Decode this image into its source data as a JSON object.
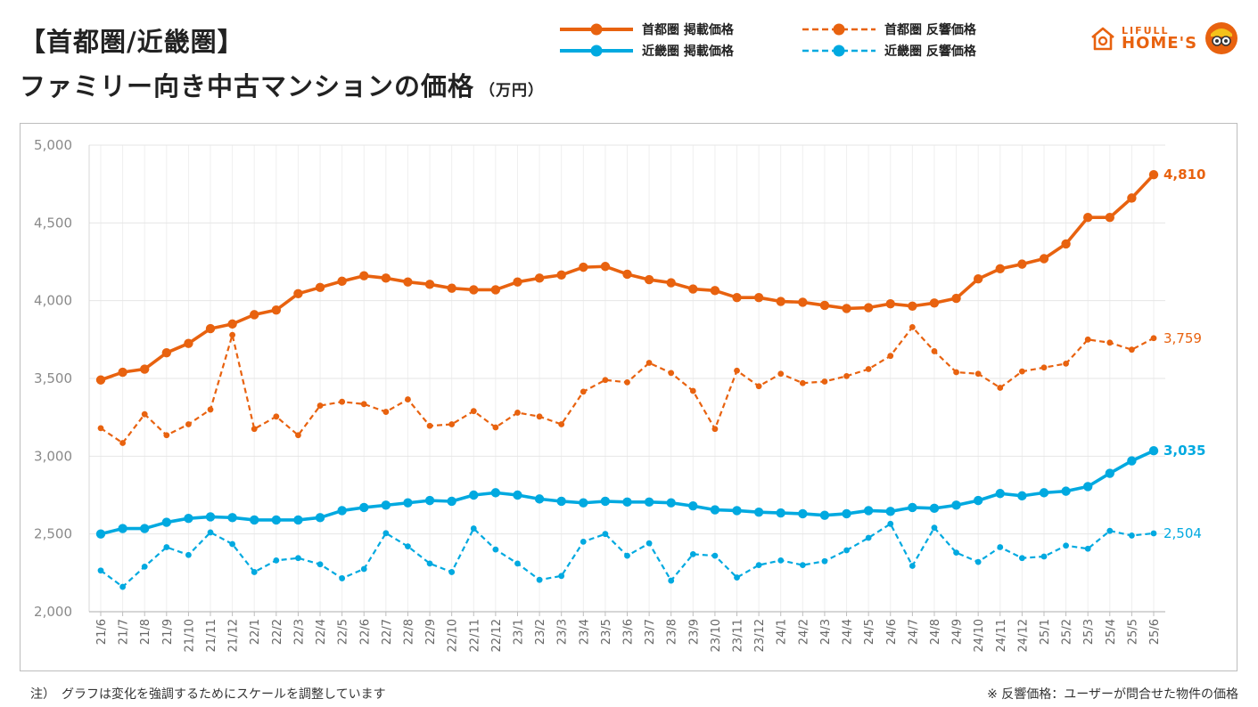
{
  "header": {
    "title_line1": "【首都圏/近畿圏】",
    "title_line2": "ファミリー向き中古マンションの価格",
    "unit": "（万円）"
  },
  "logo": {
    "line1": "LIFULL",
    "line2": "HOME'S",
    "icon": "house-logo-icon",
    "mascot": "mascot-icon"
  },
  "legend": [
    {
      "label": "首都圏 掲載価格",
      "color": "#e8620f",
      "style": "solid"
    },
    {
      "label": "首都圏 反響価格",
      "color": "#e8620f",
      "style": "dashed"
    },
    {
      "label": "近畿圏 掲載価格",
      "color": "#00a9e0",
      "style": "solid"
    },
    {
      "label": "近畿圏 反響価格",
      "color": "#00a9e0",
      "style": "dashed"
    }
  ],
  "colors": {
    "orange": "#e8620f",
    "blue": "#00a9e0",
    "grid": "#e6e6e6",
    "axis_text": "#8a8a8a"
  },
  "footnotes": {
    "left": "注）　グラフは変化を強調するためにスケールを調整しています",
    "right": "※ 反響価格：ユーザーが問合せた物件の価格"
  },
  "chart_data": {
    "type": "line",
    "ylim": [
      2000,
      5000
    ],
    "yticks": [
      "2,000",
      "2,500",
      "3,000",
      "3,500",
      "4,000",
      "4,500",
      "5,000"
    ],
    "grid": true,
    "categories": [
      "21/6",
      "21/7",
      "21/8",
      "21/9",
      "21/10",
      "21/11",
      "21/12",
      "22/1",
      "22/2",
      "22/3",
      "22/4",
      "22/5",
      "22/6",
      "22/7",
      "22/8",
      "22/9",
      "22/10",
      "22/11",
      "22/12",
      "23/1",
      "23/2",
      "23/3",
      "23/4",
      "23/5",
      "23/6",
      "23/7",
      "23/8",
      "23/9",
      "23/10",
      "23/11",
      "23/12",
      "24/1",
      "24/2",
      "24/3",
      "24/4",
      "24/5",
      "24/6",
      "24/7",
      "24/8",
      "24/9",
      "24/10",
      "24/11",
      "24/12",
      "25/1",
      "25/2",
      "25/3",
      "25/4",
      "25/5",
      "25/6"
    ],
    "series": [
      {
        "name": "首都圏 掲載価格",
        "color": "#e8620f",
        "style": "solid",
        "end_label": "4,810",
        "values": [
          3490,
          3540,
          3560,
          3665,
          3725,
          3820,
          3850,
          3910,
          3940,
          4045,
          4085,
          4125,
          4160,
          4145,
          4120,
          4105,
          4080,
          4070,
          4070,
          4120,
          4145,
          4165,
          4215,
          4220,
          4170,
          4135,
          4115,
          4075,
          4065,
          4020,
          4020,
          3995,
          3990,
          3970,
          3950,
          3955,
          3980,
          3965,
          3985,
          4015,
          4140,
          4205,
          4235,
          4270,
          4365,
          4535,
          4535,
          4660,
          4810
        ]
      },
      {
        "name": "首都圏 反響価格",
        "color": "#e8620f",
        "style": "dashed",
        "end_label": "3,759",
        "values": [
          3180,
          3085,
          3270,
          3135,
          3205,
          3300,
          3780,
          3175,
          3255,
          3135,
          3325,
          3350,
          3335,
          3285,
          3365,
          3195,
          3205,
          3290,
          3185,
          3280,
          3255,
          3205,
          3415,
          3490,
          3475,
          3600,
          3535,
          3420,
          3175,
          3550,
          3450,
          3530,
          3470,
          3480,
          3515,
          3560,
          3645,
          3830,
          3675,
          3540,
          3530,
          3440,
          3545,
          3570,
          3595,
          3750,
          3730,
          3685,
          3759
        ]
      },
      {
        "name": "近畿圏 掲載価格",
        "color": "#00a9e0",
        "style": "solid",
        "end_label": "3,035",
        "values": [
          2500,
          2535,
          2535,
          2575,
          2600,
          2610,
          2605,
          2590,
          2590,
          2590,
          2605,
          2650,
          2670,
          2685,
          2700,
          2715,
          2710,
          2750,
          2765,
          2750,
          2725,
          2710,
          2700,
          2710,
          2705,
          2705,
          2700,
          2680,
          2655,
          2650,
          2640,
          2635,
          2630,
          2620,
          2630,
          2650,
          2645,
          2670,
          2665,
          2685,
          2715,
          2760,
          2745,
          2765,
          2775,
          2805,
          2890,
          2970,
          3035
        ]
      },
      {
        "name": "近畿圏 反響価格",
        "color": "#00a9e0",
        "style": "dashed",
        "end_label": "2,504",
        "values": [
          2265,
          2160,
          2290,
          2415,
          2365,
          2510,
          2435,
          2255,
          2330,
          2345,
          2305,
          2215,
          2275,
          2505,
          2420,
          2310,
          2255,
          2535,
          2400,
          2310,
          2205,
          2230,
          2450,
          2500,
          2360,
          2440,
          2200,
          2370,
          2360,
          2220,
          2300,
          2330,
          2300,
          2325,
          2395,
          2475,
          2565,
          2295,
          2540,
          2380,
          2320,
          2415,
          2345,
          2355,
          2425,
          2405,
          2520,
          2490,
          2504
        ]
      }
    ]
  }
}
